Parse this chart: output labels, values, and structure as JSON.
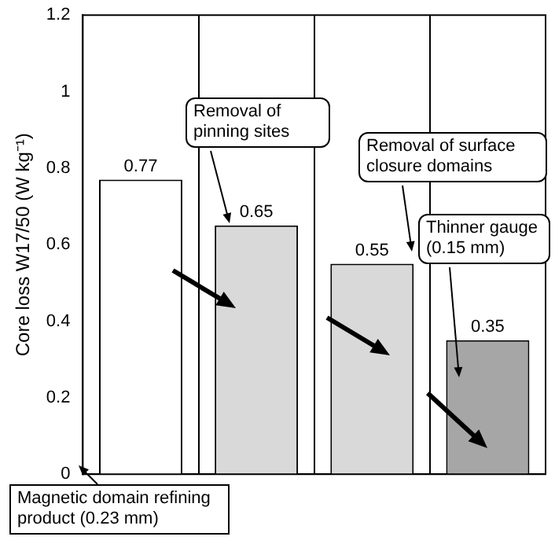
{
  "chart_data": {
    "type": "bar",
    "ylabel": "Core loss W17/50 (W kg⁻¹)",
    "categories": [
      null,
      null,
      null,
      null
    ],
    "values": [
      0.77,
      0.65,
      0.55,
      0.35
    ],
    "colors": [
      "#ffffff",
      "#d9d9d9",
      "#d9d9d9",
      "#a6a6a6"
    ],
    "ylim": [
      0,
      1.2
    ],
    "yticks": [
      0,
      {
        "value": 0.2,
        "label": "0.2"
      },
      {
        "value": 0.4,
        "label": "0.4"
      },
      {
        "value": 0.6,
        "label": "0.6"
      },
      {
        "value": 0.8,
        "label": "0.8"
      },
      1,
      {
        "value": 1.2,
        "label": "1.2"
      }
    ],
    "grid": "x",
    "data_labels": true,
    "legend": false,
    "annotations": [
      "Removal of pinning sites",
      "Removal of surface closure domains",
      "Thinner gauge (0.15 mm)",
      "Magnetic domain refining product (0.23 mm)"
    ]
  }
}
